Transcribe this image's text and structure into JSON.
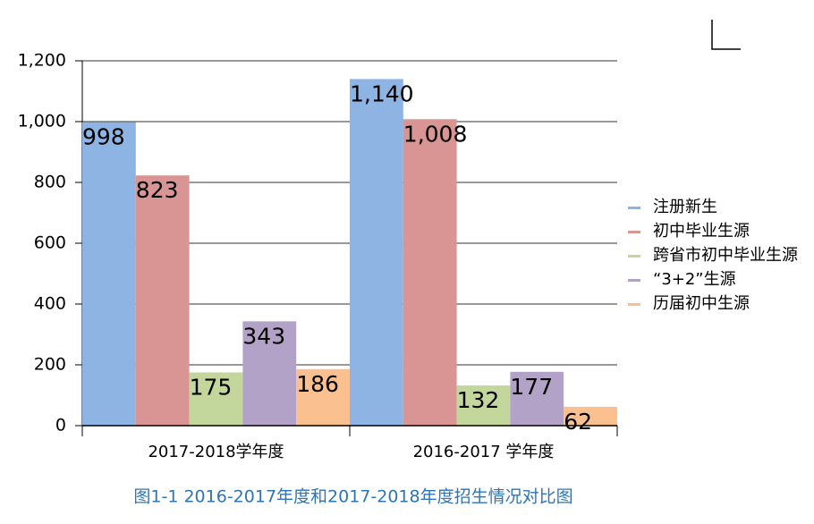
{
  "chart_data": {
    "type": "bar",
    "title": "图1-1 2016-2017年度和2017-2018年度招生情况对比图",
    "categories": [
      "2017-2018学年度",
      "2016-2017 学年度"
    ],
    "series": [
      {
        "name": "注册新生",
        "color": "#8eb4e3",
        "values": [
          998,
          1140
        ],
        "value_labels": [
          "998",
          "1,140"
        ]
      },
      {
        "name": "初中毕业生源",
        "color": "#d99594",
        "values": [
          823,
          1008
        ],
        "value_labels": [
          "823",
          "1,008"
        ]
      },
      {
        "name": "跨省市初中毕业生源",
        "color": "#c3d69b",
        "values": [
          175,
          132
        ]
      },
      {
        "name": "“3+2”生源",
        "color": "#b3a2c7",
        "values": [
          343,
          177
        ]
      },
      {
        "name": "历届初中生源",
        "color": "#fac090",
        "values": [
          186,
          62
        ]
      }
    ],
    "ylim": [
      0,
      1200
    ],
    "yticks": [
      0,
      200,
      400,
      600,
      800,
      {
        "value": 1000,
        "label": "1,000"
      },
      {
        "value": 1200,
        "label": "1,200"
      }
    ],
    "grid": true,
    "legend": "right"
  }
}
